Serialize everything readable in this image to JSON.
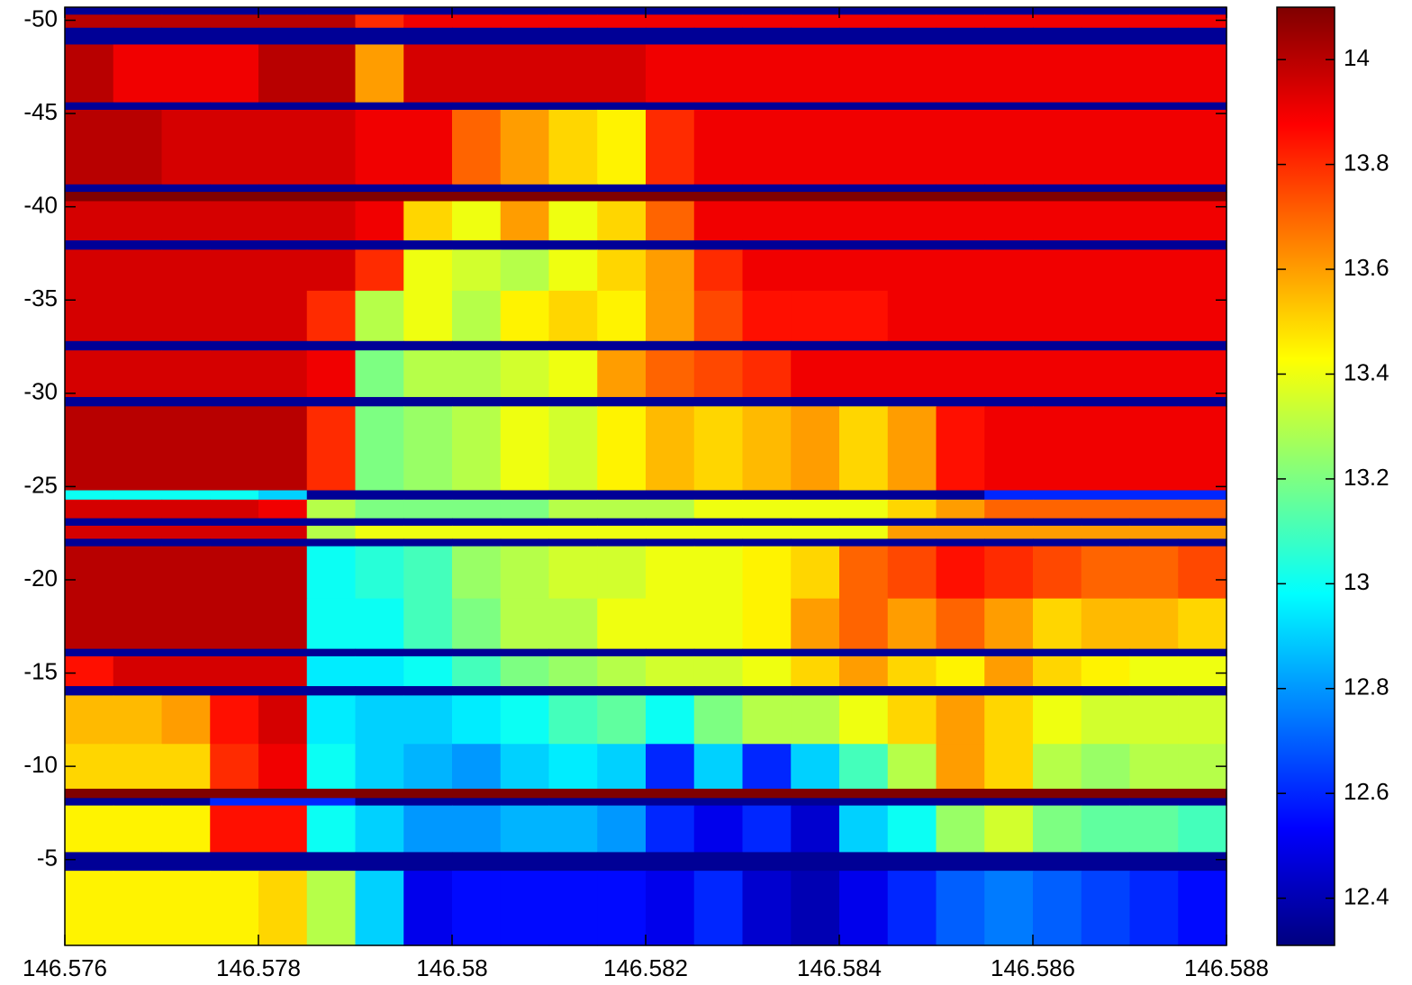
{
  "chart_data": {
    "type": "heatmap",
    "colormap": "jet",
    "xlim": [
      146.576,
      146.588
    ],
    "ylim": [
      -50.7,
      -0.4
    ],
    "y_reversed": true,
    "xticks": [
      146.576,
      146.578,
      146.58,
      146.582,
      146.584,
      146.586,
      146.588
    ],
    "yticks": [
      -50,
      -45,
      -40,
      -35,
      -30,
      -25,
      -20,
      -15,
      -10,
      -5
    ],
    "xbins": [
      146.576,
      146.5765,
      146.577,
      146.5775,
      146.578,
      146.5785,
      146.579,
      146.5795,
      146.58,
      146.5805,
      146.581,
      146.5815,
      146.582,
      146.5825,
      146.583,
      146.5835,
      146.584,
      146.5845,
      146.585,
      146.5855,
      146.586,
      146.5865,
      146.587,
      146.5875,
      146.588
    ],
    "ybins": [
      -50.7,
      -50.3,
      -49.6,
      -48.7,
      -45.6,
      -45.2,
      -41.2,
      -40.8,
      -40.3,
      -38.2,
      -37.7,
      -35.5,
      -32.8,
      -32.3,
      -29.8,
      -29.3,
      -24.8,
      -24.3,
      -23.3,
      -22.9,
      -22.2,
      -21.8,
      -19,
      -16.3,
      -15.9,
      -14.3,
      -13.8,
      -11.2,
      -8.8,
      -8.3,
      -7.9,
      -5.4,
      -4.4,
      -0.4
    ],
    "values": [
      [
        12.35,
        12.35,
        12.35,
        12.35,
        12.35,
        12.35,
        12.35,
        12.35,
        12.35,
        12.35,
        12.35,
        12.35,
        12.35,
        12.35,
        12.35,
        12.35,
        12.35,
        12.35,
        12.35,
        12.35,
        12.35,
        12.35,
        12.35,
        12.35
      ],
      [
        14,
        14,
        14,
        14,
        14,
        14,
        13.8,
        13.9,
        13.9,
        13.9,
        13.9,
        13.9,
        13.9,
        13.9,
        13.9,
        13.9,
        13.9,
        13.9,
        13.9,
        13.9,
        13.9,
        13.9,
        13.9,
        13.9
      ],
      [
        12.35,
        12.35,
        12.35,
        12.35,
        12.35,
        12.35,
        12.35,
        12.35,
        12.35,
        12.35,
        12.35,
        12.35,
        12.35,
        12.35,
        12.35,
        12.35,
        12.35,
        12.35,
        12.35,
        12.35,
        12.35,
        12.35,
        12.35,
        12.35
      ],
      [
        14,
        13.9,
        13.9,
        13.9,
        14,
        14,
        13.6,
        13.95,
        13.95,
        13.95,
        13.95,
        13.95,
        13.9,
        13.9,
        13.9,
        13.9,
        13.9,
        13.9,
        13.9,
        13.9,
        13.9,
        13.9,
        13.9,
        13.9
      ],
      [
        12.35,
        12.35,
        12.35,
        12.35,
        12.35,
        12.35,
        12.35,
        12.35,
        12.35,
        12.35,
        12.35,
        12.35,
        12.35,
        12.35,
        12.35,
        12.35,
        12.35,
        12.35,
        12.35,
        12.35,
        12.35,
        12.35,
        12.35,
        12.35
      ],
      [
        14,
        14,
        13.95,
        13.95,
        13.95,
        13.95,
        13.9,
        13.9,
        13.7,
        13.6,
        13.5,
        13.45,
        13.8,
        13.9,
        13.9,
        13.9,
        13.9,
        13.9,
        13.9,
        13.9,
        13.9,
        13.9,
        13.9,
        13.9
      ],
      [
        12.35,
        12.35,
        12.35,
        12.35,
        12.35,
        12.35,
        12.35,
        12.35,
        12.35,
        12.35,
        12.35,
        12.35,
        12.35,
        12.35,
        12.35,
        12.35,
        12.35,
        12.35,
        12.35,
        12.35,
        12.35,
        12.35,
        12.35,
        12.35
      ],
      [
        14.1,
        14.1,
        14.1,
        14.1,
        14.1,
        14.1,
        14.1,
        14.1,
        14.1,
        14.1,
        14.1,
        14.1,
        14.1,
        14.1,
        14.1,
        14.1,
        14.1,
        14.1,
        14.1,
        14.1,
        14.1,
        14.1,
        14.1,
        14.1
      ],
      [
        13.95,
        13.95,
        13.95,
        13.95,
        13.95,
        13.95,
        13.9,
        13.5,
        13.4,
        13.6,
        13.4,
        13.5,
        13.7,
        13.9,
        13.9,
        13.9,
        13.9,
        13.9,
        13.9,
        13.9,
        13.9,
        13.9,
        13.9,
        13.9
      ],
      [
        12.35,
        12.35,
        12.35,
        12.35,
        12.35,
        12.35,
        12.35,
        12.35,
        12.35,
        12.35,
        12.35,
        12.35,
        12.35,
        12.35,
        12.35,
        12.35,
        12.35,
        12.35,
        12.35,
        12.35,
        12.35,
        12.35,
        12.35,
        12.35
      ],
      [
        13.95,
        13.95,
        13.95,
        13.95,
        13.95,
        13.95,
        13.8,
        13.4,
        13.35,
        13.3,
        13.4,
        13.5,
        13.6,
        13.8,
        13.9,
        13.9,
        13.9,
        13.9,
        13.9,
        13.9,
        13.9,
        13.9,
        13.9,
        13.9
      ],
      [
        13.95,
        13.95,
        13.95,
        13.95,
        13.95,
        13.8,
        13.3,
        13.4,
        13.3,
        13.45,
        13.5,
        13.45,
        13.6,
        13.75,
        13.85,
        13.85,
        13.85,
        13.9,
        13.9,
        13.9,
        13.9,
        13.9,
        13.9,
        13.9
      ],
      [
        12.35,
        12.35,
        12.35,
        12.35,
        12.35,
        12.35,
        12.35,
        12.35,
        12.35,
        12.35,
        12.35,
        12.35,
        12.35,
        12.35,
        12.35,
        12.35,
        12.35,
        12.35,
        12.35,
        12.35,
        12.35,
        12.35,
        12.35,
        12.35
      ],
      [
        13.95,
        13.95,
        13.95,
        13.95,
        13.95,
        13.9,
        13.2,
        13.3,
        13.3,
        13.35,
        13.4,
        13.6,
        13.7,
        13.75,
        13.8,
        13.9,
        13.9,
        13.9,
        13.9,
        13.9,
        13.9,
        13.9,
        13.9,
        13.9
      ],
      [
        12.35,
        12.35,
        12.35,
        12.35,
        12.35,
        12.35,
        12.35,
        12.35,
        12.35,
        12.35,
        12.35,
        12.35,
        12.35,
        12.35,
        12.35,
        12.35,
        12.35,
        12.35,
        12.35,
        12.35,
        12.35,
        12.35,
        12.35,
        12.35
      ],
      [
        14,
        14,
        14,
        14,
        14,
        13.8,
        13.2,
        13.25,
        13.3,
        13.4,
        13.35,
        13.45,
        13.55,
        13.5,
        13.55,
        13.6,
        13.5,
        13.6,
        13.85,
        13.9,
        13.9,
        13.9,
        13.9,
        13.9
      ],
      [
        13,
        13,
        13,
        13,
        12.9,
        12.35,
        12.35,
        12.35,
        12.35,
        12.35,
        12.35,
        12.35,
        12.35,
        12.35,
        12.35,
        12.35,
        12.35,
        12.35,
        12.35,
        12.6,
        12.6,
        12.6,
        12.6,
        12.6
      ],
      [
        13.95,
        13.95,
        13.95,
        13.95,
        13.9,
        13.3,
        13.2,
        13.2,
        13.2,
        13.2,
        13.3,
        13.3,
        13.3,
        13.4,
        13.4,
        13.4,
        13.4,
        13.5,
        13.6,
        13.7,
        13.7,
        13.7,
        13.7,
        13.7
      ],
      [
        12.35,
        12.35,
        12.35,
        12.35,
        12.35,
        12.35,
        12.35,
        12.35,
        12.35,
        12.35,
        12.35,
        12.35,
        12.35,
        12.35,
        12.35,
        12.35,
        12.35,
        12.35,
        12.35,
        12.35,
        12.35,
        12.35,
        12.35,
        12.35
      ],
      [
        13.95,
        13.95,
        13.95,
        13.95,
        13.95,
        13.3,
        13.4,
        13.4,
        13.4,
        13.4,
        13.4,
        13.4,
        13.4,
        13.4,
        13.4,
        13.4,
        13.4,
        13.6,
        13.6,
        13.6,
        13.6,
        13.6,
        13.6,
        13.6
      ],
      [
        12.35,
        12.35,
        12.35,
        12.35,
        12.35,
        12.35,
        12.35,
        12.35,
        12.35,
        12.35,
        12.35,
        12.35,
        12.35,
        12.35,
        12.35,
        12.35,
        12.35,
        12.35,
        12.35,
        12.35,
        12.35,
        12.35,
        12.35,
        12.35
      ],
      [
        14,
        14,
        14,
        14,
        14,
        13,
        13.05,
        13.1,
        13.25,
        13.3,
        13.35,
        13.35,
        13.4,
        13.4,
        13.45,
        13.5,
        13.7,
        13.75,
        13.85,
        13.8,
        13.75,
        13.7,
        13.7,
        13.75
      ],
      [
        14,
        14,
        14,
        14,
        14,
        13,
        13,
        13.1,
        13.2,
        13.3,
        13.3,
        13.4,
        13.4,
        13.4,
        13.45,
        13.6,
        13.7,
        13.6,
        13.7,
        13.6,
        13.5,
        13.55,
        13.55,
        13.5
      ],
      [
        12.35,
        12.35,
        12.35,
        12.35,
        12.35,
        12.35,
        12.35,
        12.35,
        12.35,
        12.35,
        12.35,
        12.35,
        12.35,
        12.35,
        12.35,
        12.35,
        12.35,
        12.35,
        12.35,
        12.35,
        12.35,
        12.35,
        12.35,
        12.35
      ],
      [
        13.85,
        13.95,
        13.95,
        13.95,
        13.95,
        12.95,
        12.95,
        13,
        13.1,
        13.2,
        13.25,
        13.3,
        13.35,
        13.35,
        13.4,
        13.5,
        13.6,
        13.5,
        13.45,
        13.6,
        13.5,
        13.45,
        13.4,
        13.4
      ],
      [
        12.35,
        12.35,
        12.35,
        12.35,
        12.35,
        12.35,
        12.35,
        12.35,
        12.35,
        12.35,
        12.35,
        12.35,
        12.35,
        12.35,
        12.35,
        12.35,
        12.35,
        12.35,
        12.35,
        12.35,
        12.35,
        12.35,
        12.35,
        12.35
      ],
      [
        13.55,
        13.55,
        13.6,
        13.85,
        13.95,
        12.95,
        12.9,
        12.9,
        12.95,
        13,
        13.1,
        13.15,
        13,
        13.2,
        13.3,
        13.3,
        13.4,
        13.5,
        13.6,
        13.5,
        13.4,
        13.35,
        13.35,
        13.35
      ],
      [
        13.5,
        13.5,
        13.5,
        13.8,
        13.9,
        13,
        12.9,
        12.85,
        12.8,
        12.9,
        12.95,
        12.9,
        12.6,
        12.9,
        12.6,
        12.9,
        13.1,
        13.3,
        13.6,
        13.5,
        13.3,
        13.25,
        13.3,
        13.3
      ],
      [
        14.1,
        14.1,
        14.1,
        14.1,
        14.1,
        14.1,
        14.1,
        14.1,
        14.1,
        14.1,
        14.1,
        14.1,
        14.1,
        14.1,
        14.1,
        14.1,
        14.1,
        14.1,
        14.1,
        14.1,
        14.1,
        14.1,
        14.1,
        14.1
      ],
      [
        12.35,
        12.35,
        12.35,
        12.6,
        12.6,
        12.6,
        12.35,
        12.35,
        12.35,
        12.35,
        12.35,
        12.35,
        12.35,
        12.35,
        12.35,
        12.35,
        12.35,
        12.35,
        12.35,
        12.35,
        12.35,
        12.35,
        12.35,
        12.35
      ],
      [
        13.45,
        13.45,
        13.45,
        13.85,
        13.85,
        13,
        12.9,
        12.8,
        12.8,
        12.85,
        12.85,
        12.8,
        12.6,
        12.5,
        12.6,
        12.45,
        12.9,
        13,
        13.25,
        13.35,
        13.2,
        13.15,
        13.15,
        13.1
      ],
      [
        12.35,
        12.35,
        12.35,
        12.35,
        12.35,
        12.35,
        12.35,
        12.35,
        12.35,
        12.35,
        12.35,
        12.35,
        12.35,
        12.35,
        12.35,
        12.35,
        12.35,
        12.35,
        12.35,
        12.35,
        12.35,
        12.35,
        12.35,
        12.35
      ],
      [
        13.45,
        13.45,
        13.45,
        13.45,
        13.5,
        13.3,
        12.9,
        12.5,
        12.55,
        12.55,
        12.55,
        12.55,
        12.5,
        12.6,
        12.45,
        12.4,
        12.5,
        12.6,
        12.7,
        12.75,
        12.7,
        12.65,
        12.6,
        12.55
      ]
    ],
    "colorbar": {
      "clim": [
        12.31,
        14.1
      ],
      "ticks": [
        12.4,
        12.6,
        12.8,
        13,
        13.2,
        13.4,
        13.6,
        13.8,
        14
      ]
    }
  }
}
